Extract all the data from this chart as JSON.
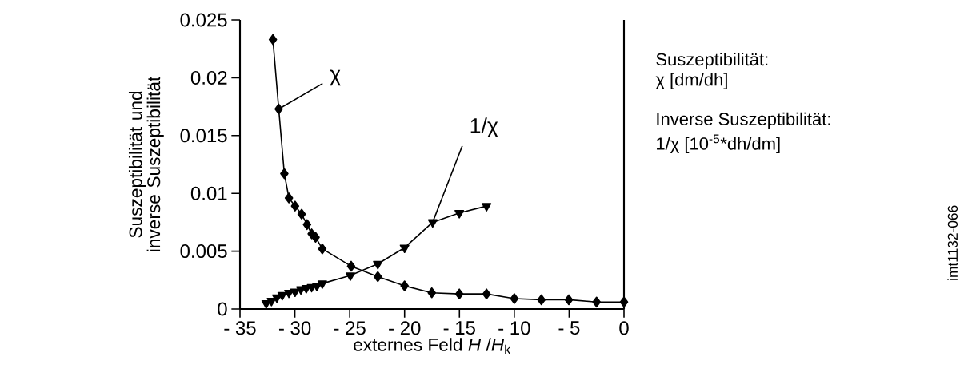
{
  "chart_data": {
    "type": "line",
    "xlabel": "externes Feld *H* /*H*$_{k}$",
    "ylabel": "Suszeptibilität und inverse Suszeptibilität",
    "xlim": [
      -35,
      0
    ],
    "ylim": [
      0,
      0.025
    ],
    "xticks": [
      {
        "value": -35,
        "label": "- 35"
      },
      {
        "value": -30,
        "label": "- 30"
      },
      {
        "value": -25,
        "label": "- 25"
      },
      {
        "value": -20,
        "label": "- 20"
      },
      {
        "value": -15,
        "label": "- 15"
      },
      {
        "value": -10,
        "label": "- 10"
      },
      {
        "value": -5,
        "label": "- 5"
      },
      {
        "value": 0,
        "label": "0"
      }
    ],
    "yticks": [
      0,
      0.005,
      0.01,
      0.015,
      0.02,
      0.025
    ],
    "grid": false,
    "series": [
      {
        "name": "χ",
        "color": "#000000",
        "marker": "diamond",
        "x": [
          -32.0,
          -31.47,
          -30.96,
          -30.54,
          -29.98,
          -29.38,
          -28.89,
          -28.47,
          -28.11,
          -27.5,
          -24.87,
          -22.44,
          -20.0,
          -17.52,
          -15.01,
          -12.53,
          -10.0,
          -7.53,
          -5.03,
          -2.5,
          0
        ],
        "values": [
          0.0233,
          0.0173,
          0.0117,
          0.0096,
          0.0089,
          0.0082,
          0.0073,
          0.0065,
          0.0062,
          0.0052,
          0.0037,
          0.0028,
          0.002,
          0.0014,
          0.0013,
          0.0013,
          0.0009,
          0.0008,
          0.0008,
          0.0006,
          0.0006
        ]
      },
      {
        "name": "1/χ",
        "color": "#000000",
        "marker": "triangle",
        "x": [
          -32.61,
          -32.13,
          -31.64,
          -31.15,
          -30.54,
          -29.98,
          -29.45,
          -28.96,
          -28.47,
          -27.99,
          -27.5,
          -24.94,
          -22.44,
          -20.0,
          -17.44,
          -15.01,
          -12.53
        ],
        "values": [
          0.0005,
          0.0007,
          0.001,
          0.0012,
          0.0014,
          0.0015,
          0.0017,
          0.0018,
          0.0019,
          0.002,
          0.0022,
          0.0029,
          0.0039,
          0.0053,
          0.0075,
          0.0083,
          0.0089
        ]
      }
    ],
    "annotations": [
      "Suszeptibilität:",
      "χ [dm/dh]",
      "Inverse Suszeptibilität:",
      "1/χ [10$^{-5}$*dh/dm]",
      "imt1132-066"
    ]
  }
}
